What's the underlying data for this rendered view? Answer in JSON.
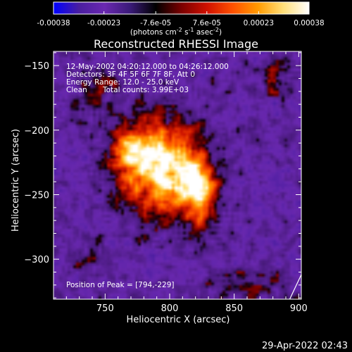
{
  "colorbar": {
    "tick_labels": [
      "-0.00038",
      "-0.00023",
      "-7.6e-05",
      "7.6e-05",
      "0.00023",
      "0.00038"
    ],
    "tick_values": [
      -0.00038,
      -0.00023,
      -7.6e-05,
      7.6e-05,
      0.00023,
      0.00038
    ],
    "range": [
      -0.00038,
      0.00038
    ],
    "units_main": "(photons cm",
    "units_sup1": "-2",
    "units_mid": " s",
    "units_sup2": "-1",
    "units_end": " asec",
    "units_sup3": "-2",
    "units_close": ")",
    "colors": [
      "#0000ff",
      "#4a1ea0",
      "#6a28b0",
      "#3a1a78",
      "#000000",
      "#7a0000",
      "#d01000",
      "#ff5000",
      "#ff9a00",
      "#ffe07a",
      "#ffffff"
    ]
  },
  "chart_data": {
    "type": "heatmap",
    "title": "Reconstructed RHESSI Image",
    "xlabel": "Heliocentric X (arcsec)",
    "ylabel": "Heliocentric Y (arcsec)",
    "xlim": [
      710,
      902
    ],
    "ylim": [
      -331,
      -139
    ],
    "xticks": [
      750,
      800,
      850,
      900
    ],
    "yticks": [
      -150,
      -200,
      -250,
      -300
    ],
    "annotations": {
      "line1": "12-May-2002 04:20:12.000 to 04:26:12.000",
      "line2": "Detectors: 3F 4F 5F 6F 7F 8F, Att 0",
      "line3": "Energy Range: 12.0 - 25.0 keV",
      "line4_a": "Clean",
      "line4_b": "Total counts: 3.99E+03",
      "peak": "Position of Peak = [794,-229]"
    },
    "peak": [
      794,
      -229
    ],
    "sources": [
      {
        "x": 794,
        "y": -229,
        "sx": 22,
        "sy": 26,
        "amp": 1.0
      },
      {
        "x": 822,
        "y": -242,
        "sx": 9,
        "sy": 11,
        "amp": 0.75
      },
      {
        "x": 770,
        "y": -216,
        "sx": 10,
        "sy": 10,
        "amp": 0.55
      },
      {
        "x": 742,
        "y": -168,
        "sx": 12,
        "sy": 14,
        "amp": 0.3
      },
      {
        "x": 826,
        "y": -265,
        "sx": 8,
        "sy": 16,
        "amp": 0.35
      },
      {
        "x": 740,
        "y": -300,
        "sx": 10,
        "sy": 12,
        "amp": 0.2
      },
      {
        "x": 858,
        "y": -318,
        "sx": 20,
        "sy": 10,
        "amp": 0.25
      },
      {
        "x": 883,
        "y": -160,
        "sx": 10,
        "sy": 10,
        "amp": 0.3
      }
    ],
    "limb_line": [
      [
        893,
        -331
      ],
      [
        902,
        -312
      ]
    ]
  },
  "footer": {
    "timestamp": "29-Apr-2022 02:43"
  }
}
